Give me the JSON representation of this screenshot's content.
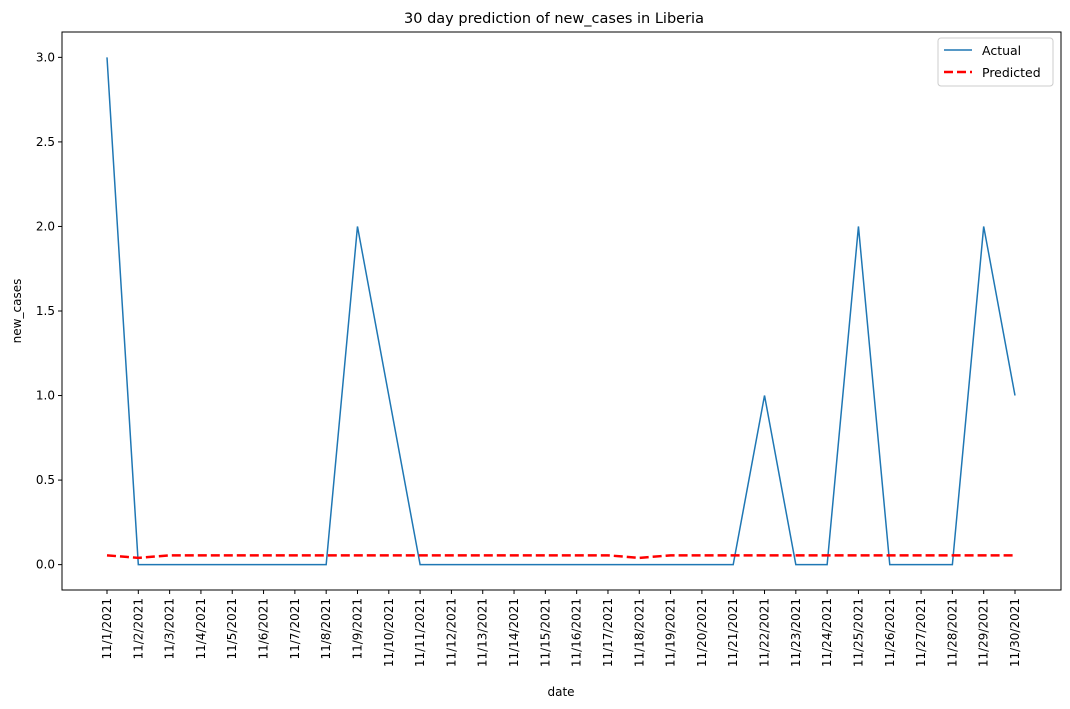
{
  "chart_data": {
    "type": "line",
    "title": "30 day prediction of new_cases in Liberia",
    "xlabel": "date",
    "ylabel": "new_cases",
    "ylim": [
      -0.15,
      3.15
    ],
    "yticks": [
      "0.0",
      "0.5",
      "1.0",
      "1.5",
      "2.0",
      "2.5",
      "3.0"
    ],
    "ytick_values": [
      0,
      0.5,
      1.0,
      1.5,
      2.0,
      2.5,
      3.0
    ],
    "x": [
      "11/1/2021",
      "11/2/2021",
      "11/3/2021",
      "11/4/2021",
      "11/5/2021",
      "11/6/2021",
      "11/7/2021",
      "11/8/2021",
      "11/9/2021",
      "11/10/2021",
      "11/11/2021",
      "11/12/2021",
      "11/13/2021",
      "11/14/2021",
      "11/15/2021",
      "11/16/2021",
      "11/17/2021",
      "11/18/2021",
      "11/19/2021",
      "11/20/2021",
      "11/21/2021",
      "11/22/2021",
      "11/23/2021",
      "11/24/2021",
      "11/25/2021",
      "11/26/2021",
      "11/27/2021",
      "11/28/2021",
      "11/29/2021",
      "11/30/2021"
    ],
    "grid": false,
    "legend_position": "top-right",
    "series": [
      {
        "name": "Actual",
        "color": "#1f77b4",
        "style": "solid",
        "values": [
          3,
          0,
          0,
          0,
          0,
          0,
          0,
          0,
          2,
          1,
          0,
          0,
          0,
          0,
          0,
          0,
          0,
          0,
          0,
          0,
          0,
          1,
          0,
          0,
          2,
          0,
          0,
          0,
          2,
          1
        ]
      },
      {
        "name": "Predicted",
        "color": "#ff0000",
        "style": "dashed",
        "values": [
          0.055,
          0.04,
          0.055,
          0.055,
          0.055,
          0.055,
          0.055,
          0.055,
          0.055,
          0.055,
          0.055,
          0.055,
          0.055,
          0.055,
          0.055,
          0.055,
          0.055,
          0.04,
          0.055,
          0.055,
          0.055,
          0.055,
          0.055,
          0.055,
          0.055,
          0.055,
          0.055,
          0.055,
          0.055,
          0.055
        ]
      }
    ]
  }
}
